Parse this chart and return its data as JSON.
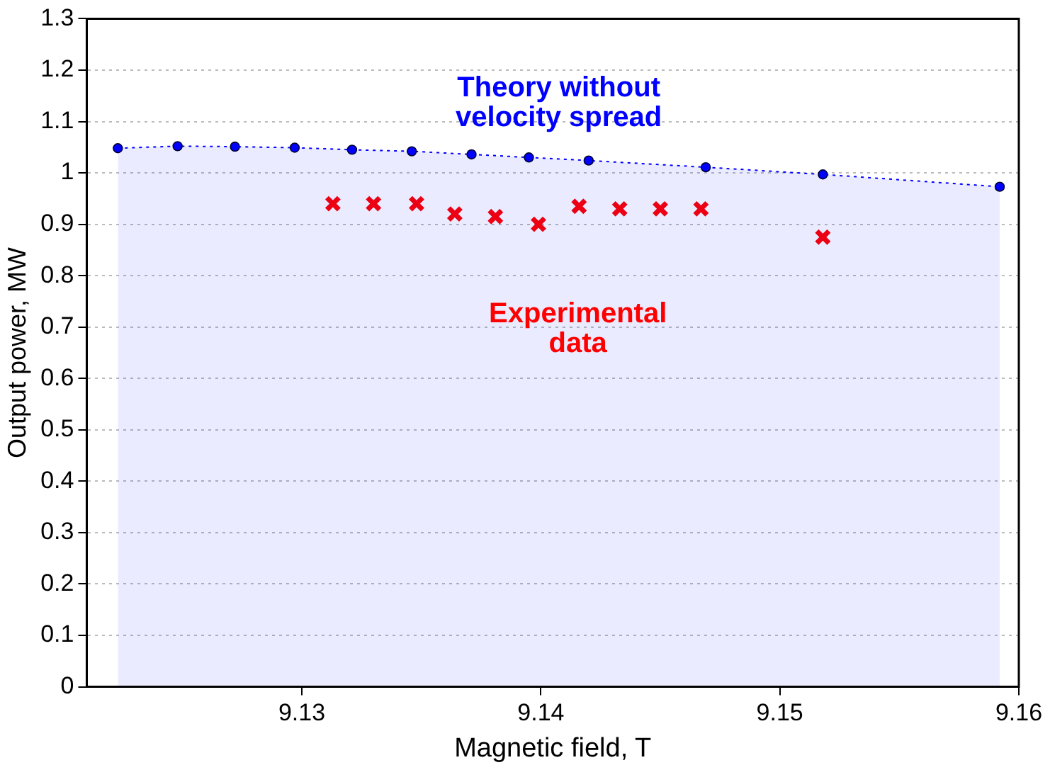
{
  "chart_data": {
    "type": "scatter",
    "xlabel": "Magnetic field, T",
    "ylabel": "Output power, MW",
    "xlim": [
      9.121,
      9.16
    ],
    "xticks": [
      9.13,
      9.14,
      9.15,
      9.16
    ],
    "ylim": [
      0,
      1.3
    ],
    "yticks": [
      0,
      0.1,
      0.2,
      0.3,
      0.4,
      0.5,
      0.6,
      0.7,
      0.8,
      0.9,
      1,
      1.1,
      1.2,
      1.3
    ],
    "grid": "y",
    "legend": false,
    "series": [
      {
        "name": "Theory without velocity spread",
        "type": "area",
        "color": "#0000ff",
        "marker": "circle",
        "line_style": "dotted",
        "x": [
          9.1223,
          9.1248,
          9.1272,
          9.1297,
          9.1321,
          9.1346,
          9.1371,
          9.1395,
          9.142,
          9.1469,
          9.1518,
          9.1592
        ],
        "values": [
          1.048,
          1.052,
          1.051,
          1.049,
          1.045,
          1.042,
          1.036,
          1.03,
          1.024,
          1.011,
          0.997,
          0.973
        ]
      },
      {
        "name": "Experimental data",
        "type": "scatter",
        "color": "#ff0000",
        "marker": "cross",
        "x": [
          9.1313,
          9.133,
          9.1348,
          9.1364,
          9.1381,
          9.1399,
          9.1416,
          9.1433,
          9.145,
          9.1467,
          9.1518
        ],
        "values": [
          0.94,
          0.94,
          0.94,
          0.92,
          0.915,
          0.9,
          0.935,
          0.93,
          0.93,
          0.93,
          0.875
        ]
      }
    ]
  }
}
